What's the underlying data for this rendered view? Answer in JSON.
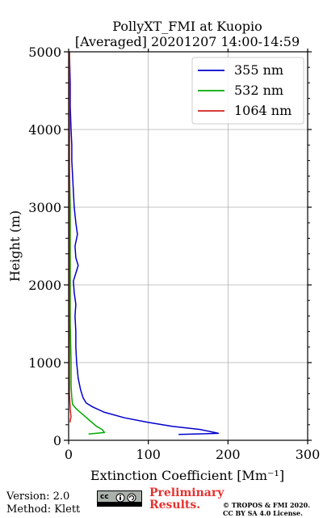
{
  "chart_data": {
    "type": "line",
    "title": "PollyXT_FMI at Kuopio",
    "subtitle": "[Averaged] 20201207 14:00-14:59",
    "xlabel": "Extinction Coefficient [Mm⁻¹]",
    "ylabel": "Height (m)",
    "xlim": [
      0,
      300
    ],
    "ylim": [
      0,
      5000
    ],
    "xticks": [
      "0",
      "100",
      "200",
      "300"
    ],
    "yticks": [
      "0",
      "1000",
      "2000",
      "3000",
      "4000",
      "5000"
    ],
    "grid": true,
    "legend_position": "top-right",
    "series": [
      {
        "name": "355 nm",
        "color": "#0000cc",
        "points": [
          [
            138,
            75
          ],
          [
            188,
            90
          ],
          [
            165,
            140
          ],
          [
            130,
            180
          ],
          [
            100,
            230
          ],
          [
            70,
            290
          ],
          [
            45,
            360
          ],
          [
            30,
            430
          ],
          [
            22,
            480
          ],
          [
            18,
            550
          ],
          [
            15,
            650
          ],
          [
            12,
            800
          ],
          [
            10,
            1000
          ],
          [
            9,
            1200
          ],
          [
            9,
            1400
          ],
          [
            8,
            1600
          ],
          [
            9,
            1750
          ],
          [
            7,
            1900
          ],
          [
            6,
            2050
          ],
          [
            9,
            2150
          ],
          [
            12,
            2250
          ],
          [
            9,
            2350
          ],
          [
            8,
            2500
          ],
          [
            11,
            2650
          ],
          [
            9,
            2800
          ],
          [
            7,
            3000
          ],
          [
            6,
            3200
          ],
          [
            5,
            3400
          ],
          [
            4,
            3600
          ],
          [
            4,
            3800
          ],
          [
            3,
            4000
          ],
          [
            2,
            4300
          ],
          [
            2,
            4600
          ],
          [
            1,
            5000
          ]
        ]
      },
      {
        "name": "532 nm",
        "color": "#00aa00",
        "points": [
          [
            25,
            80
          ],
          [
            45,
            100
          ],
          [
            42,
            140
          ],
          [
            35,
            180
          ],
          [
            27,
            250
          ],
          [
            18,
            330
          ],
          [
            10,
            400
          ],
          [
            5,
            460
          ],
          [
            4,
            550
          ],
          [
            3,
            700
          ],
          [
            3,
            1000
          ],
          [
            2,
            1500
          ],
          [
            2,
            2000
          ],
          [
            2,
            2500
          ],
          [
            2,
            3000
          ],
          [
            1,
            3500
          ],
          [
            1,
            4000
          ],
          [
            1,
            4500
          ],
          [
            1,
            5000
          ]
        ]
      },
      {
        "name": "1064 nm",
        "color": "#d42020",
        "points": [
          [
            2,
            230
          ],
          [
            2,
            260
          ],
          [
            3,
            300
          ],
          [
            2,
            400
          ],
          [
            1,
            600
          ],
          [
            1,
            1000
          ],
          [
            1,
            2000
          ],
          [
            1,
            3000
          ],
          [
            1,
            4000
          ],
          [
            1,
            5000
          ]
        ]
      }
    ]
  },
  "footer": {
    "version": "Version: 2.0",
    "method": "Method: Klett",
    "license_badge": "cc",
    "preliminary": [
      "Preliminary",
      "Results."
    ],
    "copyright": [
      "© TROPOS & FMI 2020.",
      "CC BY SA 4.0 License."
    ]
  }
}
